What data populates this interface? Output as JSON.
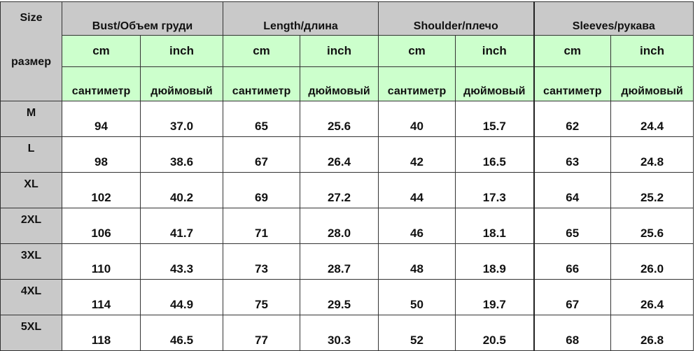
{
  "header": {
    "size_label": "Size",
    "size_label_ru": "размер",
    "groups": [
      "Bust/Объем груди",
      "Length/длина",
      "Shoulder/плечо",
      "Sleeves/рукава"
    ],
    "unit_cm": "cm",
    "unit_inch": "inch",
    "unit_cm_ru": "сантиметр",
    "unit_inch_ru": "дюймовый"
  },
  "rows": [
    [
      "M",
      "94",
      "37.0",
      "65",
      "25.6",
      "40",
      "15.7",
      "62",
      "24.4"
    ],
    [
      "L",
      "98",
      "38.6",
      "67",
      "26.4",
      "42",
      "16.5",
      "63",
      "24.8"
    ],
    [
      "XL",
      "102",
      "40.2",
      "69",
      "27.2",
      "44",
      "17.3",
      "64",
      "25.2"
    ],
    [
      "2XL",
      "106",
      "41.7",
      "71",
      "28.0",
      "46",
      "18.1",
      "65",
      "25.6"
    ],
    [
      "3XL",
      "110",
      "43.3",
      "73",
      "28.7",
      "48",
      "18.9",
      "66",
      "26.0"
    ],
    [
      "4XL",
      "114",
      "44.9",
      "75",
      "29.5",
      "50",
      "19.7",
      "67",
      "26.4"
    ],
    [
      "5XL",
      "118",
      "46.5",
      "77",
      "30.3",
      "52",
      "20.5",
      "68",
      "26.8"
    ]
  ],
  "colors": {
    "header_gray": "#c9c9c9",
    "header_green": "#ccffcc"
  }
}
